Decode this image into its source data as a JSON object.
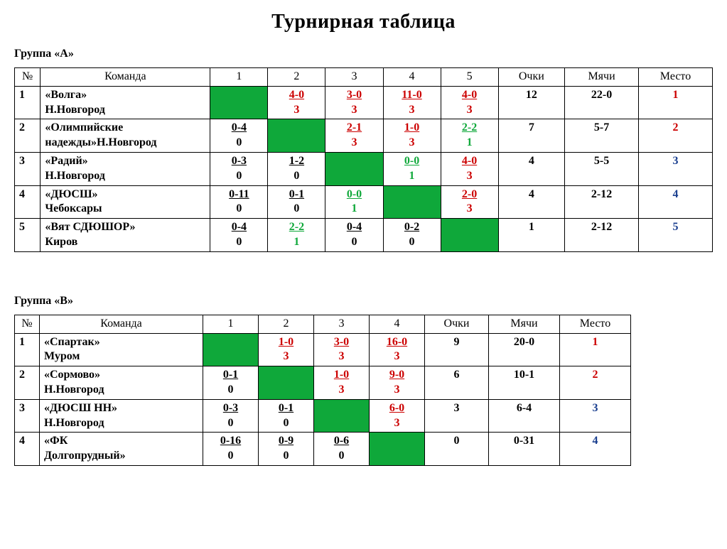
{
  "title": "Турнирная таблица",
  "headers": {
    "num": "№",
    "team": "Команда",
    "pts": "Очки",
    "goals": "Мячи",
    "place": "Место"
  },
  "colors": {
    "diag_bg": "#0fa83a",
    "red": "#cc0000",
    "green": "#0fa83a",
    "blue": "#1a3f8f",
    "black": "#000000"
  },
  "groupA": {
    "label": "Группа «А»",
    "num_cols": 5,
    "rows": [
      {
        "num": "1",
        "team_l1": "«Волга»",
        "team_l2": "Н.Новгород",
        "cells": [
          null,
          {
            "score": "4-0",
            "pts": "3",
            "color": "red"
          },
          {
            "score": "3-0",
            "pts": "3",
            "color": "red"
          },
          {
            "score": "11-0",
            "pts": "3",
            "color": "red"
          },
          {
            "score": "4-0",
            "pts": "3",
            "color": "red"
          }
        ],
        "pts": "12",
        "goals": "22-0",
        "place": "1",
        "place_color": "red"
      },
      {
        "num": "2",
        "team_l1": "«Олимпийские",
        "team_l2": "надежды»Н.Новгород",
        "cells": [
          {
            "score": "0-4",
            "pts": "0",
            "color": "black"
          },
          null,
          {
            "score": "2-1",
            "pts": "3",
            "color": "red"
          },
          {
            "score": "1-0",
            "pts": "3",
            "color": "red"
          },
          {
            "score": "2-2",
            "pts": "1",
            "color": "green"
          }
        ],
        "pts": "7",
        "goals": "5-7",
        "place": "2",
        "place_color": "red"
      },
      {
        "num": "3",
        "team_l1": "«Радий»",
        "team_l2": "Н.Новгород",
        "cells": [
          {
            "score": "0-3",
            "pts": "0",
            "color": "black"
          },
          {
            "score": "1-2",
            "pts": "0",
            "color": "black"
          },
          null,
          {
            "score": "0-0",
            "pts": "1",
            "color": "green"
          },
          {
            "score": "4-0",
            "pts": "3",
            "color": "red"
          }
        ],
        "pts": "4",
        "goals": "5-5",
        "place": "3",
        "place_color": "blue"
      },
      {
        "num": "4",
        "team_l1": "«ДЮСШ»",
        "team_l2": "Чебоксары",
        "cells": [
          {
            "score": "0-11",
            "pts": "0",
            "color": "black"
          },
          {
            "score": "0-1",
            "pts": "0",
            "color": "black"
          },
          {
            "score": "0-0",
            "pts": "1",
            "color": "green"
          },
          null,
          {
            "score": "2-0",
            "pts": "3",
            "color": "red"
          }
        ],
        "pts": "4",
        "goals": "2-12",
        "place": "4",
        "place_color": "blue"
      },
      {
        "num": "5",
        "team_l1": "«Вят СДЮШОР»",
        "team_l2": "Киров",
        "cells": [
          {
            "score": "0-4",
            "pts": "0",
            "color": "black"
          },
          {
            "score": "2-2",
            "pts": "1",
            "color": "green"
          },
          {
            "score": "0-4",
            "pts": "0",
            "color": "black"
          },
          {
            "score": "0-2",
            "pts": "0",
            "color": "black"
          },
          null
        ],
        "pts": "1",
        "goals": "2-12",
        "place": "5",
        "place_color": "blue"
      }
    ]
  },
  "groupB": {
    "label": "Группа «В»",
    "num_cols": 4,
    "rows": [
      {
        "num": "1",
        "team_l1": "«Спартак»",
        "team_l2": "Муром",
        "cells": [
          null,
          {
            "score": "1-0",
            "pts": "3",
            "color": "red"
          },
          {
            "score": "3-0",
            "pts": "3",
            "color": "red"
          },
          {
            "score": "16-0",
            "pts": "3",
            "color": "red"
          }
        ],
        "pts": "9",
        "goals": "20-0",
        "place": "1",
        "place_color": "red"
      },
      {
        "num": "2",
        "team_l1": "«Сормово»",
        "team_l2": "Н.Новгород",
        "cells": [
          {
            "score": "0-1",
            "pts": "0",
            "color": "black"
          },
          null,
          {
            "score": "1-0",
            "pts": "3",
            "color": "red"
          },
          {
            "score": "9-0",
            "pts": "3",
            "color": "red"
          }
        ],
        "pts": "6",
        "goals": "10-1",
        "place": "2",
        "place_color": "red"
      },
      {
        "num": "3",
        "team_l1": "«ДЮСШ НН»",
        "team_l2": "Н.Новгород",
        "cells": [
          {
            "score": "0-3",
            "pts": "0",
            "color": "black"
          },
          {
            "score": "0-1",
            "pts": "0",
            "color": "black"
          },
          null,
          {
            "score": "6-0",
            "pts": "3",
            "color": "red"
          }
        ],
        "pts": "3",
        "goals": "6-4",
        "place": "3",
        "place_color": "blue"
      },
      {
        "num": "4",
        "team_l1": "«ФК",
        "team_l2": "Долгопрудный»",
        "cells": [
          {
            "score": "0-16",
            "pts": "0",
            "color": "black"
          },
          {
            "score": "0-9",
            "pts": "0",
            "color": "black"
          },
          {
            "score": "0-6",
            "pts": "0",
            "color": "black"
          },
          null
        ],
        "pts": "0",
        "goals": "0-31",
        "place": "4",
        "place_color": "blue"
      }
    ]
  }
}
